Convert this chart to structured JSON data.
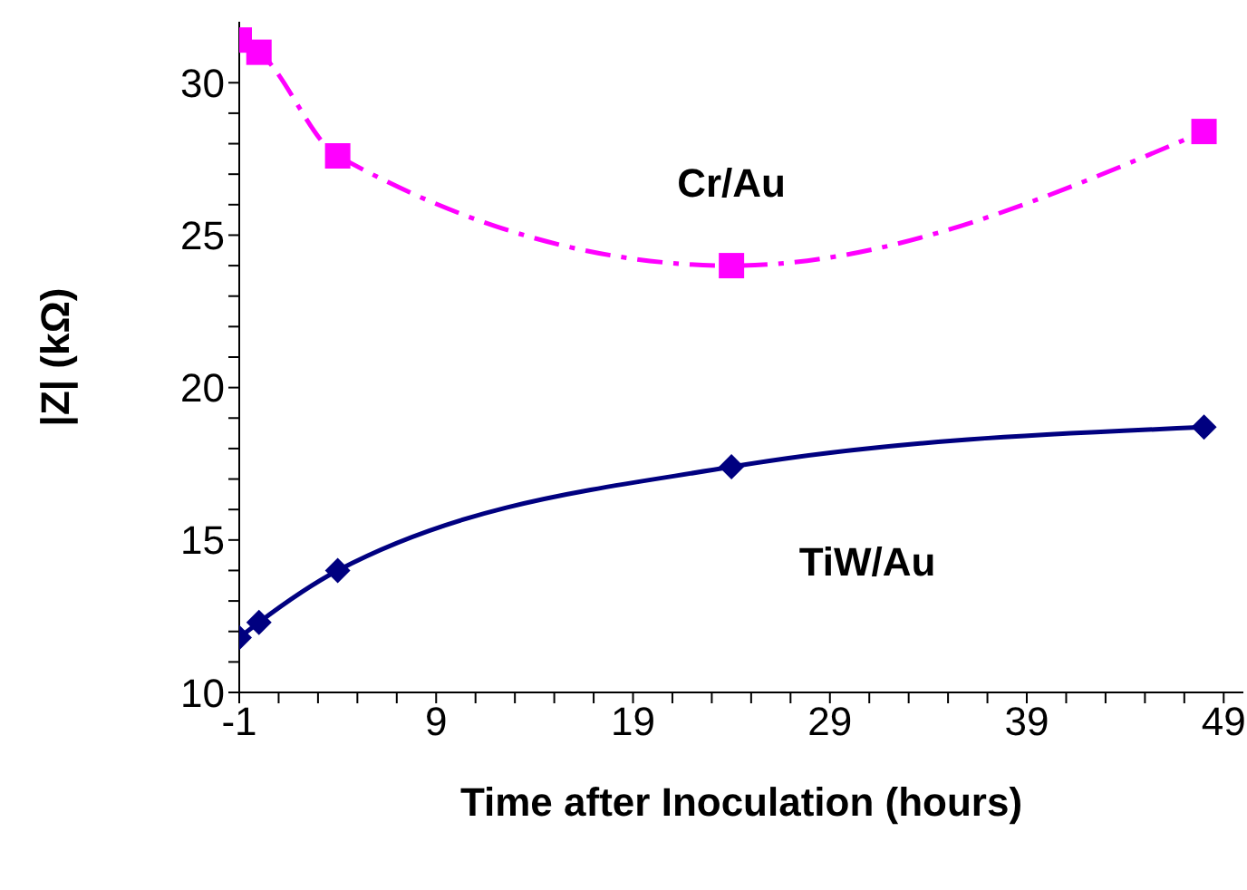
{
  "chart_data": {
    "type": "line",
    "xlabel": "Time after Inoculation (hours)",
    "ylabel": "|Z| (kΩ)",
    "xlim": [
      -1,
      50
    ],
    "xticks": [
      -1,
      {
        "value": 1,
        "label": null
      },
      {
        "value": 3,
        "label": null
      },
      {
        "value": 5,
        "label": null
      },
      {
        "value": 7,
        "label": null
      },
      9,
      {
        "value": 11,
        "label": null
      },
      {
        "value": 13,
        "label": null
      },
      {
        "value": 15,
        "label": null
      },
      {
        "value": 17,
        "label": null
      },
      19,
      {
        "value": 21,
        "label": null
      },
      {
        "value": 23,
        "label": null
      },
      {
        "value": 25,
        "label": null
      },
      {
        "value": 27,
        "label": null
      },
      29,
      {
        "value": 31,
        "label": null
      },
      {
        "value": 33,
        "label": null
      },
      {
        "value": 35,
        "label": null
      },
      {
        "value": 37,
        "label": null
      },
      39,
      {
        "value": 41,
        "label": null
      },
      {
        "value": 43,
        "label": null
      },
      {
        "value": 45,
        "label": null
      },
      {
        "value": 47,
        "label": null
      },
      49
    ],
    "ylim": [
      10,
      32
    ],
    "yticks": [
      10,
      {
        "value": 11,
        "label": null
      },
      {
        "value": 12,
        "label": null
      },
      {
        "value": 13,
        "label": null
      },
      {
        "value": 14,
        "label": null
      },
      15,
      {
        "value": 16,
        "label": null
      },
      {
        "value": 17,
        "label": null
      },
      {
        "value": 18,
        "label": null
      },
      {
        "value": 19,
        "label": null
      },
      20,
      {
        "value": 21,
        "label": null
      },
      {
        "value": 22,
        "label": null
      },
      {
        "value": 23,
        "label": null
      },
      {
        "value": 24,
        "label": null
      },
      25,
      {
        "value": 26,
        "label": null
      },
      {
        "value": 27,
        "label": null
      },
      {
        "value": 28,
        "label": null
      },
      {
        "value": 29,
        "label": null
      },
      30
    ],
    "grid": false,
    "legend": false,
    "x": [
      -1,
      0,
      4,
      24,
      48
    ],
    "series": [
      {
        "name": "Cr/Au",
        "color": "#ff00ff",
        "marker": "square",
        "line_style": "dashed",
        "values": [
          31.4,
          31.0,
          27.6,
          24.0,
          28.4
        ]
      },
      {
        "name": "TiW/Au",
        "color": "#000080",
        "marker": "diamond",
        "line_style": "solid",
        "values": [
          11.8,
          12.3,
          14.0,
          17.4,
          18.7
        ]
      }
    ]
  }
}
